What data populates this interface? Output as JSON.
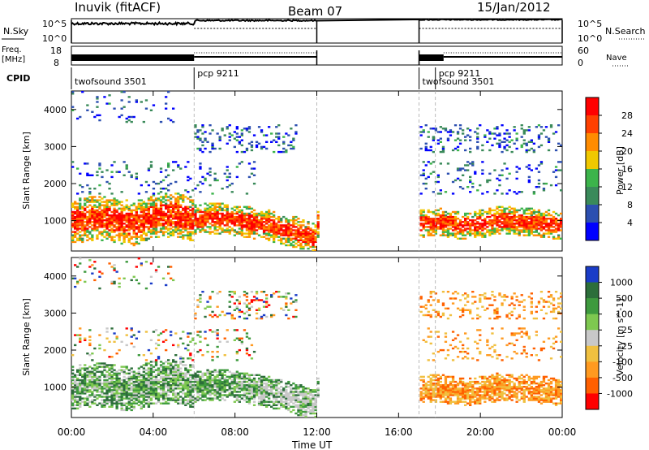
{
  "header": {
    "station": "Inuvik (fitACF)",
    "beam": "Beam 07",
    "date": "15/Jan/2012"
  },
  "top_panels": {
    "nsky_label": "N.Sky",
    "nsky_ticks": [
      "10^5",
      "10^0"
    ],
    "nsearch_label": "N.Search",
    "nsearch_ticks": [
      "10^5",
      "10^0"
    ],
    "freq_label_1": "Freq.",
    "freq_label_2": "[MHz]",
    "freq_ticks": [
      "18",
      "8"
    ],
    "nave_label": "Nave",
    "nave_ticks": [
      "60",
      "0"
    ],
    "cpid_label": "CPID",
    "cpid_segments": [
      {
        "label": "twofsound 3501",
        "start": 0,
        "end": 6
      },
      {
        "label": "pcp 9211",
        "start": 6,
        "end": 17
      },
      {
        "label": "twofsound 3501",
        "start": 17,
        "end": 17.8
      },
      {
        "label": "pcp 9211",
        "start": 17.8,
        "end": 24
      }
    ]
  },
  "colors": {
    "power_scale": [
      "#0000ff",
      "#2c4fb0",
      "#3a8a5a",
      "#3cb44b",
      "#f0c800",
      "#ff8c00",
      "#ff4000",
      "#ff0000"
    ],
    "velocity_scale": [
      "#1a3cc8",
      "#2c6e3a",
      "#3e9a3e",
      "#7ec850",
      "#c8c8c8",
      "#f0c040",
      "#ff9a20",
      "#ff6000",
      "#ff0000"
    ],
    "ground_scatter": "#b4b4b4"
  },
  "chart_data": {
    "type": "heatmap",
    "xlabel": "Time UT",
    "x_ticks": [
      "00:00",
      "04:00",
      "08:00",
      "12:00",
      "16:00",
      "20:00",
      "00:00"
    ],
    "x_range_hours": [
      0,
      24
    ],
    "y_range_km": [
      180,
      4500
    ],
    "y_ticks": [
      1000,
      2000,
      3000,
      4000
    ],
    "data_gaps_hours": [
      [
        12,
        17
      ]
    ],
    "panels": [
      {
        "name": "power",
        "ylabel": "Slant Range [km]",
        "colorbar_label": "Power [dB]",
        "colorbar_ticks": [
          "28",
          "24",
          "20",
          "16",
          "12",
          "8",
          "4"
        ],
        "range_dB": [
          0,
          30
        ]
      },
      {
        "name": "velocity",
        "ylabel": "Slant Range [km]",
        "colorbar_label": "Velocity [m s^-1]",
        "colorbar_ticks": [
          "1000",
          "500",
          "100",
          "25",
          "-25",
          "-100",
          "-500",
          "-1000"
        ],
        "range_ms": [
          -1000,
          1000
        ]
      }
    ],
    "series": [
      {
        "t": [
          0,
          1,
          2,
          3,
          4,
          5,
          6,
          7,
          8,
          9,
          10,
          11,
          11.9
        ],
        "range_km": [
          950,
          1050,
          1000,
          900,
          1100,
          1150,
          1000,
          1050,
          1000,
          900,
          800,
          650,
          500
        ]
      },
      {
        "t": [
          17,
          18,
          19,
          20,
          21,
          22,
          23,
          24
        ],
        "range_km": [
          900,
          950,
          850,
          900,
          1000,
          950,
          900,
          850
        ]
      }
    ]
  }
}
